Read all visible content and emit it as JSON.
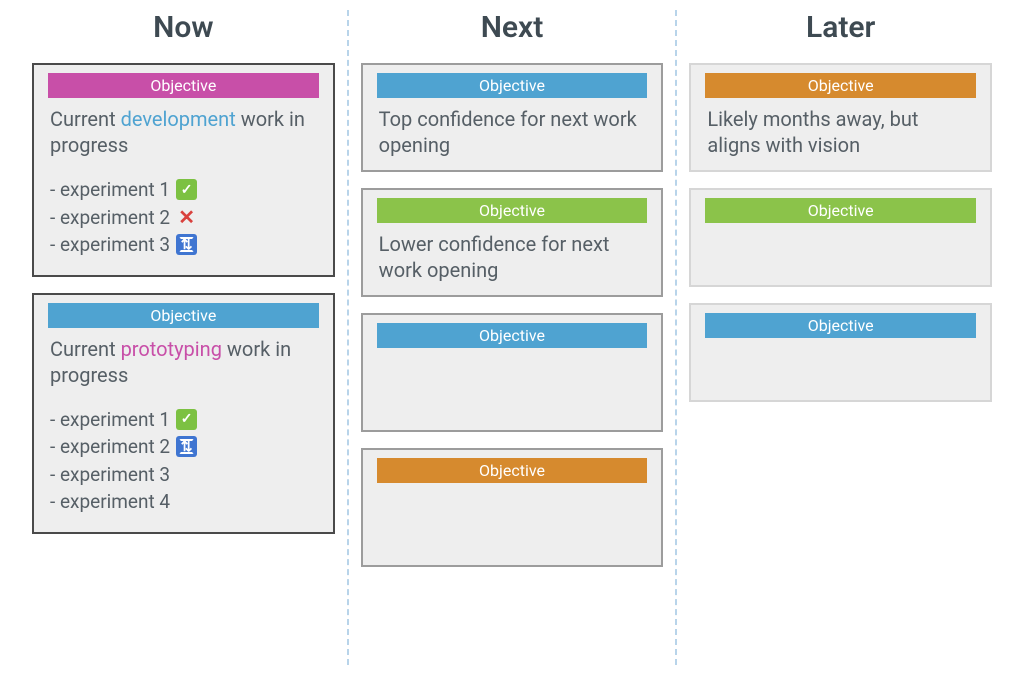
{
  "colors": {
    "pink": "#c84fa8",
    "blue": "#4fa3d1",
    "green": "#8bc34a",
    "orange": "#d68a2e",
    "text": "#565f66",
    "col_title": "#3e4a52",
    "border_now": "#4a4a4a",
    "border_next": "#9c9c9c",
    "border_later": "#d6d6d6",
    "card_bg": "#eeeeee",
    "divider": "#b8d4ea"
  },
  "objective_label": "Objective",
  "columns": {
    "now": {
      "title": "Now"
    },
    "next": {
      "title": "Next"
    },
    "later": {
      "title": "Later"
    }
  },
  "now_cards": [
    {
      "bar_color_key": "pink",
      "text_pre": "Current ",
      "text_hl": "development",
      "text_hl_color": "blue",
      "text_post": " work in progress",
      "experiments": [
        {
          "label": "experiment 1",
          "status": "done"
        },
        {
          "label": "experiment 2",
          "status": "fail"
        },
        {
          "label": "experiment 3",
          "status": "cycle"
        }
      ]
    },
    {
      "bar_color_key": "blue",
      "text_pre": "Current ",
      "text_hl": "prototyping",
      "text_hl_color": "pink",
      "text_post": " work in progress",
      "experiments": [
        {
          "label": "experiment 1",
          "status": "done"
        },
        {
          "label": "experiment 2",
          "status": "cycle"
        },
        {
          "label": "experiment 3",
          "status": "none"
        },
        {
          "label": "experiment 4",
          "status": "none"
        }
      ]
    }
  ],
  "next_cards": [
    {
      "bar_color_key": "blue",
      "text": "Top confidence for next work opening"
    },
    {
      "bar_color_key": "green",
      "text": "Lower confidence for next work opening"
    },
    {
      "bar_color_key": "blue",
      "text": ""
    },
    {
      "bar_color_key": "orange",
      "text": ""
    }
  ],
  "later_cards": [
    {
      "bar_color_key": "orange",
      "text": "Likely months away, but aligns with vision"
    },
    {
      "bar_color_key": "green",
      "text": ""
    },
    {
      "bar_color_key": "blue",
      "text": ""
    }
  ]
}
